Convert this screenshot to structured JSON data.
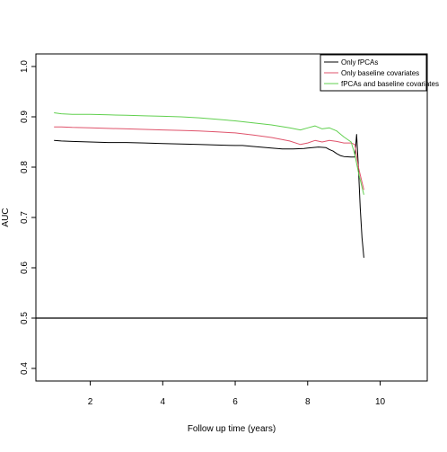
{
  "chart_data": {
    "type": "line",
    "title": "",
    "xlabel": "Follow up time (years)",
    "ylabel": "AUC",
    "xlim": [
      0.5,
      11.3
    ],
    "ylim": [
      0.375,
      1.025
    ],
    "x_ticks": [
      2,
      4,
      6,
      8,
      10
    ],
    "x_tick_labels": [
      "2",
      "4",
      "6",
      "8",
      "10"
    ],
    "y_ticks": [
      0.4,
      0.5,
      0.6,
      0.7,
      0.8,
      0.9,
      1.0
    ],
    "y_tick_labels": [
      "0.4",
      "0.5",
      "0.6",
      "0.7",
      "0.8",
      "0.9",
      "1.0"
    ],
    "reference_line_y": 0.5,
    "grid": false,
    "legend_position": "top-right",
    "series": [
      {
        "name": "Only fPCAs",
        "color": "#000000",
        "x": [
          1.0,
          1.2,
          1.5,
          2.0,
          2.5,
          3.0,
          3.5,
          4.0,
          4.5,
          5.0,
          5.5,
          6.0,
          6.2,
          6.5,
          7.0,
          7.3,
          7.6,
          7.9,
          8.0,
          8.3,
          8.5,
          8.6,
          8.7,
          8.8,
          8.9,
          9.0,
          9.2,
          9.3,
          9.35,
          9.4,
          9.45,
          9.5,
          9.55
        ],
        "y": [
          0.853,
          0.852,
          0.851,
          0.85,
          0.849,
          0.849,
          0.848,
          0.847,
          0.846,
          0.845,
          0.844,
          0.843,
          0.843,
          0.841,
          0.838,
          0.836,
          0.836,
          0.837,
          0.838,
          0.84,
          0.839,
          0.835,
          0.832,
          0.827,
          0.823,
          0.821,
          0.82,
          0.82,
          0.865,
          0.8,
          0.72,
          0.66,
          0.62
        ]
      },
      {
        "name": "Only baseline covariates",
        "color": "#DF536B",
        "x": [
          1.0,
          1.2,
          1.5,
          2.0,
          2.5,
          3.0,
          3.5,
          4.0,
          4.5,
          5.0,
          5.5,
          6.0,
          6.5,
          7.0,
          7.5,
          7.8,
          8.0,
          8.2,
          8.4,
          8.6,
          8.8,
          9.0,
          9.2,
          9.3,
          9.4,
          9.5,
          9.55
        ],
        "y": [
          0.88,
          0.88,
          0.879,
          0.878,
          0.877,
          0.876,
          0.875,
          0.874,
          0.873,
          0.872,
          0.87,
          0.868,
          0.864,
          0.859,
          0.852,
          0.845,
          0.848,
          0.853,
          0.85,
          0.853,
          0.851,
          0.848,
          0.848,
          0.845,
          0.8,
          0.77,
          0.755
        ]
      },
      {
        "name": "fPCAs and baseline covariates",
        "color": "#61D04F",
        "x": [
          1.0,
          1.2,
          1.5,
          2.0,
          2.5,
          3.0,
          3.5,
          4.0,
          4.5,
          5.0,
          5.5,
          6.0,
          6.5,
          7.0,
          7.5,
          7.8,
          8.0,
          8.2,
          8.4,
          8.6,
          8.8,
          9.0,
          9.2,
          9.3,
          9.4,
          9.5,
          9.55
        ],
        "y": [
          0.908,
          0.906,
          0.905,
          0.905,
          0.904,
          0.903,
          0.902,
          0.901,
          0.9,
          0.898,
          0.895,
          0.892,
          0.888,
          0.884,
          0.878,
          0.874,
          0.878,
          0.882,
          0.876,
          0.878,
          0.872,
          0.86,
          0.85,
          0.825,
          0.79,
          0.76,
          0.745
        ]
      }
    ]
  }
}
